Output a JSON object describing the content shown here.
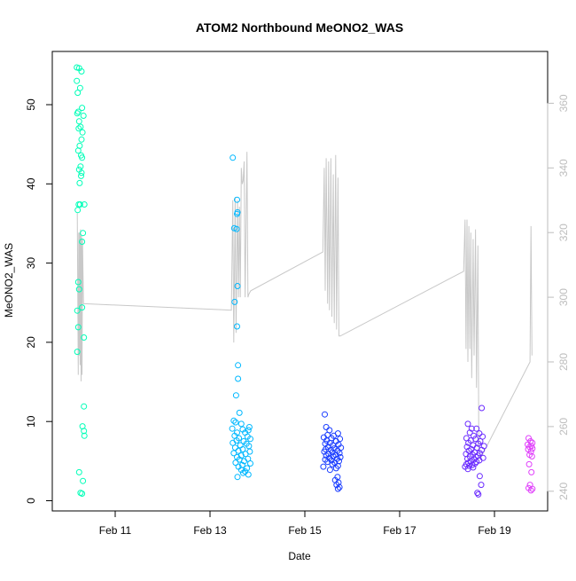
{
  "chart_data": {
    "type": "scatter",
    "title": "ATOM2 Northbound MeONO2_WAS",
    "xlabel": "Date",
    "ylabel": "MeONO2_WAS",
    "x_unit": "days of February 2017",
    "xlim": [
      10.0,
      21.0
    ],
    "ylim": [
      0,
      55
    ],
    "y2lim": [
      240,
      360
    ],
    "x_ticks": [
      {
        "value": 11,
        "label": "Feb 11"
      },
      {
        "value": 13,
        "label": "Feb 13"
      },
      {
        "value": 15,
        "label": "Feb 15"
      },
      {
        "value": 17,
        "label": "Feb 17"
      },
      {
        "value": 19,
        "label": "Feb 19"
      }
    ],
    "y_ticks": [
      0,
      10,
      20,
      30,
      40,
      50
    ],
    "y2_ticks": [
      240,
      260,
      280,
      300,
      320,
      340,
      360
    ],
    "grid": false,
    "legend": "none",
    "series": [
      {
        "color": "#00FFB8",
        "points": [
          [
            10.19,
            54.7
          ],
          [
            10.24,
            54.6
          ],
          [
            10.29,
            54.2
          ],
          [
            10.19,
            53.0
          ],
          [
            10.26,
            52.1
          ],
          [
            10.21,
            51.5
          ],
          [
            10.3,
            49.6
          ],
          [
            10.22,
            49.1
          ],
          [
            10.2,
            48.9
          ],
          [
            10.33,
            48.6
          ],
          [
            10.24,
            47.9
          ],
          [
            10.27,
            47.2
          ],
          [
            10.23,
            47.0
          ],
          [
            10.31,
            46.5
          ],
          [
            10.29,
            45.6
          ],
          [
            10.25,
            44.8
          ],
          [
            10.22,
            44.2
          ],
          [
            10.28,
            43.6
          ],
          [
            10.3,
            43.3
          ],
          [
            10.27,
            42.2
          ],
          [
            10.24,
            41.8
          ],
          [
            10.29,
            41.4
          ],
          [
            10.28,
            41.0
          ],
          [
            10.25,
            40.1
          ],
          [
            10.23,
            37.4
          ],
          [
            10.26,
            37.4
          ],
          [
            10.35,
            37.4
          ],
          [
            10.21,
            36.7
          ],
          [
            10.32,
            33.8
          ],
          [
            10.3,
            32.7
          ],
          [
            10.22,
            27.6
          ],
          [
            10.24,
            26.7
          ],
          [
            10.2,
            24.0
          ],
          [
            10.3,
            24.4
          ],
          [
            10.22,
            21.9
          ],
          [
            10.34,
            20.6
          ],
          [
            10.2,
            18.8
          ],
          [
            10.34,
            11.9
          ],
          [
            10.31,
            9.4
          ],
          [
            10.34,
            8.8
          ],
          [
            10.35,
            8.2
          ],
          [
            10.24,
            3.6
          ],
          [
            10.32,
            2.5
          ],
          [
            10.27,
            1.0
          ],
          [
            10.3,
            0.9
          ]
        ]
      },
      {
        "color": "#00B8FF",
        "points": [
          [
            13.48,
            43.3
          ],
          [
            13.57,
            38.0
          ],
          [
            13.58,
            36.4
          ],
          [
            13.57,
            36.2
          ],
          [
            13.51,
            34.4
          ],
          [
            13.56,
            34.3
          ],
          [
            13.58,
            27.1
          ],
          [
            13.52,
            25.1
          ],
          [
            13.57,
            22.0
          ],
          [
            13.59,
            17.1
          ],
          [
            13.59,
            15.4
          ],
          [
            13.55,
            13.3
          ],
          [
            13.62,
            11.1
          ],
          [
            13.5,
            10.1
          ],
          [
            13.54,
            9.9
          ],
          [
            13.66,
            9.7
          ],
          [
            13.83,
            9.3
          ],
          [
            13.47,
            9.1
          ],
          [
            13.69,
            9.0
          ],
          [
            13.81,
            8.9
          ],
          [
            13.57,
            8.6
          ],
          [
            13.74,
            8.6
          ],
          [
            13.52,
            8.2
          ],
          [
            13.79,
            8.1
          ],
          [
            13.61,
            7.9
          ],
          [
            13.85,
            7.8
          ],
          [
            13.56,
            7.6
          ],
          [
            13.71,
            7.5
          ],
          [
            13.48,
            7.3
          ],
          [
            13.77,
            7.2
          ],
          [
            13.64,
            7.0
          ],
          [
            13.82,
            6.9
          ],
          [
            13.53,
            6.7
          ],
          [
            13.69,
            6.5
          ],
          [
            13.6,
            6.3
          ],
          [
            13.84,
            6.2
          ],
          [
            13.5,
            6.0
          ],
          [
            13.75,
            5.9
          ],
          [
            13.66,
            5.7
          ],
          [
            13.57,
            5.5
          ],
          [
            13.8,
            5.3
          ],
          [
            13.62,
            5.2
          ],
          [
            13.72,
            5.0
          ],
          [
            13.54,
            4.8
          ],
          [
            13.85,
            4.7
          ],
          [
            13.68,
            4.5
          ],
          [
            13.6,
            4.3
          ],
          [
            13.78,
            4.1
          ],
          [
            13.66,
            3.9
          ],
          [
            13.74,
            3.7
          ],
          [
            13.7,
            3.5
          ],
          [
            13.81,
            3.3
          ],
          [
            13.58,
            3.0
          ]
        ]
      },
      {
        "color": "#1A3DFF",
        "points": [
          [
            15.42,
            10.9
          ],
          [
            15.45,
            9.3
          ],
          [
            15.52,
            8.9
          ],
          [
            15.7,
            8.5
          ],
          [
            15.48,
            8.3
          ],
          [
            15.61,
            8.2
          ],
          [
            15.4,
            8.0
          ],
          [
            15.56,
            7.9
          ],
          [
            15.74,
            7.8
          ],
          [
            15.46,
            7.6
          ],
          [
            15.66,
            7.5
          ],
          [
            15.53,
            7.3
          ],
          [
            15.43,
            7.2
          ],
          [
            15.71,
            7.1
          ],
          [
            15.59,
            7.0
          ],
          [
            15.49,
            6.8
          ],
          [
            15.76,
            6.7
          ],
          [
            15.62,
            6.6
          ],
          [
            15.44,
            6.5
          ],
          [
            15.55,
            6.4
          ],
          [
            15.69,
            6.3
          ],
          [
            15.41,
            6.2
          ],
          [
            15.58,
            6.1
          ],
          [
            15.73,
            6.0
          ],
          [
            15.5,
            5.9
          ],
          [
            15.65,
            5.8
          ],
          [
            15.45,
            5.7
          ],
          [
            15.6,
            5.6
          ],
          [
            15.75,
            5.5
          ],
          [
            15.52,
            5.4
          ],
          [
            15.68,
            5.3
          ],
          [
            15.43,
            5.2
          ],
          [
            15.56,
            5.1
          ],
          [
            15.72,
            5.0
          ],
          [
            15.48,
            4.9
          ],
          [
            15.63,
            4.8
          ],
          [
            15.58,
            4.6
          ],
          [
            15.7,
            4.4
          ],
          [
            15.39,
            4.3
          ],
          [
            15.66,
            4.1
          ],
          [
            15.53,
            3.9
          ],
          [
            15.69,
            3.0
          ],
          [
            15.64,
            2.6
          ],
          [
            15.71,
            2.3
          ],
          [
            15.67,
            2.0
          ],
          [
            15.73,
            1.7
          ],
          [
            15.7,
            1.5
          ]
        ]
      },
      {
        "color": "#6B2BFF",
        "points": [
          [
            18.73,
            11.7
          ],
          [
            18.44,
            9.7
          ],
          [
            18.52,
            9.1
          ],
          [
            18.62,
            9.1
          ],
          [
            18.48,
            8.6
          ],
          [
            18.68,
            8.5
          ],
          [
            18.56,
            8.2
          ],
          [
            18.75,
            8.1
          ],
          [
            18.41,
            7.9
          ],
          [
            18.6,
            7.8
          ],
          [
            18.5,
            7.6
          ],
          [
            18.7,
            7.5
          ],
          [
            18.45,
            7.3
          ],
          [
            18.66,
            7.2
          ],
          [
            18.55,
            7.0
          ],
          [
            18.78,
            6.9
          ],
          [
            18.42,
            6.8
          ],
          [
            18.63,
            6.7
          ],
          [
            18.51,
            6.5
          ],
          [
            18.73,
            6.4
          ],
          [
            18.46,
            6.3
          ],
          [
            18.58,
            6.1
          ],
          [
            18.69,
            6.0
          ],
          [
            18.4,
            5.9
          ],
          [
            18.54,
            5.8
          ],
          [
            18.65,
            5.7
          ],
          [
            18.48,
            5.6
          ],
          [
            18.61,
            5.5
          ],
          [
            18.76,
            5.4
          ],
          [
            18.43,
            5.3
          ],
          [
            18.57,
            5.2
          ],
          [
            18.68,
            5.1
          ],
          [
            18.5,
            5.0
          ],
          [
            18.62,
            4.9
          ],
          [
            18.45,
            4.8
          ],
          [
            18.59,
            4.7
          ],
          [
            18.41,
            4.6
          ],
          [
            18.53,
            4.5
          ],
          [
            18.47,
            4.4
          ],
          [
            18.38,
            4.3
          ],
          [
            18.55,
            4.2
          ],
          [
            18.44,
            4.0
          ],
          [
            18.69,
            3.1
          ],
          [
            18.72,
            2.0
          ],
          [
            18.64,
            1.0
          ],
          [
            18.66,
            0.8
          ]
        ]
      },
      {
        "color": "#E040FB",
        "points": [
          [
            19.72,
            7.9
          ],
          [
            19.76,
            7.5
          ],
          [
            19.8,
            7.3
          ],
          [
            19.7,
            7.1
          ],
          [
            19.78,
            6.9
          ],
          [
            19.74,
            6.8
          ],
          [
            19.8,
            6.6
          ],
          [
            19.71,
            6.5
          ],
          [
            19.77,
            6.2
          ],
          [
            19.74,
            5.8
          ],
          [
            19.79,
            5.6
          ],
          [
            19.73,
            4.6
          ],
          [
            19.78,
            3.6
          ],
          [
            19.75,
            2.0
          ],
          [
            19.72,
            1.6
          ],
          [
            19.8,
            1.5
          ],
          [
            19.77,
            1.3
          ]
        ]
      }
    ],
    "secondary_line": {
      "color": "#C8C8C8",
      "axis": "right",
      "points": [
        [
          10.2,
          326
        ],
        [
          10.22,
          276
        ],
        [
          10.23,
          320
        ],
        [
          10.24,
          282
        ],
        [
          10.25,
          320
        ],
        [
          10.26,
          279
        ],
        [
          10.27,
          321
        ],
        [
          10.28,
          274
        ],
        [
          10.29,
          319
        ],
        [
          10.3,
          276
        ],
        [
          10.31,
          318
        ],
        [
          10.33,
          298
        ],
        [
          10.35,
          298
        ],
        [
          13.45,
          296
        ],
        [
          13.48,
          330
        ],
        [
          13.5,
          286
        ],
        [
          13.53,
          331
        ],
        [
          13.55,
          289
        ],
        [
          13.58,
          330
        ],
        [
          13.6,
          300
        ],
        [
          13.62,
          328
        ],
        [
          13.64,
          300
        ],
        [
          13.66,
          340
        ],
        [
          13.68,
          335
        ],
        [
          13.7,
          336
        ],
        [
          13.72,
          342
        ],
        [
          13.74,
          300
        ],
        [
          13.78,
          345
        ],
        [
          13.8,
          300
        ],
        [
          13.82,
          301
        ],
        [
          13.86,
          302
        ],
        [
          15.38,
          314
        ],
        [
          15.41,
          340
        ],
        [
          15.43,
          302
        ],
        [
          15.45,
          343
        ],
        [
          15.48,
          298
        ],
        [
          15.5,
          342
        ],
        [
          15.52,
          296
        ],
        [
          15.55,
          343
        ],
        [
          15.57,
          294
        ],
        [
          15.6,
          338
        ],
        [
          15.62,
          292
        ],
        [
          15.65,
          344
        ],
        [
          15.67,
          290
        ],
        [
          15.7,
          337
        ],
        [
          15.72,
          288
        ],
        [
          15.75,
          288
        ],
        [
          18.35,
          308
        ],
        [
          18.38,
          324
        ],
        [
          18.4,
          284
        ],
        [
          18.42,
          324
        ],
        [
          18.44,
          280
        ],
        [
          18.46,
          322
        ],
        [
          18.48,
          284
        ],
        [
          18.5,
          320
        ],
        [
          18.52,
          275
        ],
        [
          18.55,
          318
        ],
        [
          18.57,
          282
        ],
        [
          18.6,
          321
        ],
        [
          18.62,
          272
        ],
        [
          18.65,
          316
        ],
        [
          18.67,
          254
        ],
        [
          18.7,
          250
        ],
        [
          19.75,
          280
        ],
        [
          19.77,
          322
        ],
        [
          19.79,
          282
        ]
      ]
    }
  }
}
